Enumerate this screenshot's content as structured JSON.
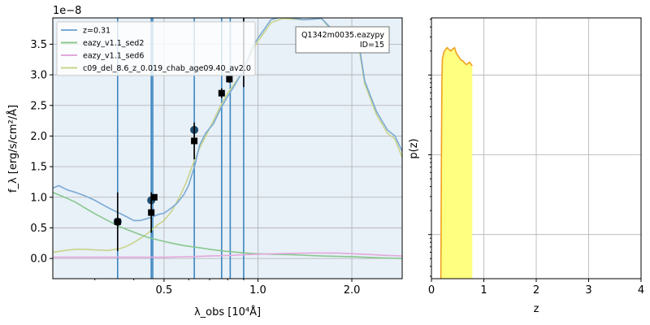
{
  "chart_data": [
    {
      "type": "line",
      "xlabel": "λ_obs [10⁴Å]",
      "ylabel": "f_λ [erg/s/cm²/Å]",
      "offset_text": "1e−8",
      "xscale": "log",
      "xlim": [
        0.22,
        2.9
      ],
      "ylim": [
        -0.33,
        3.93
      ],
      "x_ticks": [
        0.5,
        1.0,
        2.0
      ],
      "x_tick_labels": [
        "0.5",
        "1.0",
        "2.0"
      ],
      "y_ticks": [
        0.0,
        0.5,
        1.0,
        1.5,
        2.0,
        2.5,
        3.0,
        3.5
      ],
      "y_tick_labels": [
        "0.0",
        "0.5",
        "1.0",
        "1.5",
        "2.0",
        "2.5",
        "3.0",
        "3.5"
      ],
      "background": "#e8f0f8",
      "grid": true,
      "legend_placement": "top-left",
      "annotation": [
        "Q1342m0035.eazypy",
        "ID=15"
      ],
      "annotation_placement": "top-right",
      "series": [
        {
          "name": "z=0.31",
          "color": "#7aaad4",
          "points": [
            [
              0.22,
              1.15
            ],
            [
              0.23,
              1.19
            ],
            [
              0.245,
              1.12
            ],
            [
              0.26,
              1.08
            ],
            [
              0.28,
              1.02
            ],
            [
              0.3,
              0.95
            ],
            [
              0.32,
              0.87
            ],
            [
              0.34,
              0.8
            ],
            [
              0.36,
              0.74
            ],
            [
              0.38,
              0.68
            ],
            [
              0.4,
              0.62
            ],
            [
              0.42,
              0.62
            ],
            [
              0.44,
              0.65
            ],
            [
              0.46,
              0.68
            ],
            [
              0.48,
              0.72
            ],
            [
              0.5,
              0.74
            ],
            [
              0.52,
              0.8
            ],
            [
              0.55,
              0.9
            ],
            [
              0.58,
              1.05
            ],
            [
              0.6,
              1.2
            ],
            [
              0.63,
              1.55
            ],
            [
              0.65,
              1.85
            ],
            [
              0.68,
              2.05
            ],
            [
              0.72,
              2.2
            ],
            [
              0.76,
              2.45
            ],
            [
              0.8,
              2.65
            ],
            [
              0.84,
              2.82
            ],
            [
              0.88,
              3.0
            ],
            [
              0.92,
              3.2
            ],
            [
              0.96,
              3.45
            ],
            [
              1.0,
              3.6
            ],
            [
              1.05,
              3.75
            ],
            [
              1.1,
              3.9
            ],
            [
              1.2,
              3.95
            ],
            [
              1.4,
              3.9
            ],
            [
              1.6,
              3.92
            ],
            [
              1.8,
              3.65
            ],
            [
              2.0,
              3.6
            ],
            [
              2.1,
              3.55
            ],
            [
              2.2,
              2.9
            ],
            [
              2.4,
              2.4
            ],
            [
              2.6,
              2.1
            ],
            [
              2.75,
              2.0
            ],
            [
              2.9,
              1.75
            ]
          ]
        },
        {
          "name": "eazy_v1.1_sed2",
          "color": "#88c88e",
          "points": [
            [
              0.22,
              1.08
            ],
            [
              0.24,
              1.0
            ],
            [
              0.26,
              0.92
            ],
            [
              0.28,
              0.82
            ],
            [
              0.3,
              0.73
            ],
            [
              0.33,
              0.62
            ],
            [
              0.36,
              0.52
            ],
            [
              0.4,
              0.43
            ],
            [
              0.44,
              0.35
            ],
            [
              0.48,
              0.3
            ],
            [
              0.53,
              0.25
            ],
            [
              0.58,
              0.21
            ],
            [
              0.64,
              0.18
            ],
            [
              0.7,
              0.15
            ],
            [
              0.78,
              0.12
            ],
            [
              0.86,
              0.1
            ],
            [
              0.96,
              0.08
            ],
            [
              1.1,
              0.07
            ],
            [
              1.3,
              0.06
            ],
            [
              1.6,
              0.04
            ],
            [
              2.0,
              0.03
            ],
            [
              2.5,
              0.01
            ],
            [
              2.9,
              0.0
            ]
          ]
        },
        {
          "name": "eazy_v1.1_sed6",
          "color": "#e3a8dc",
          "points": [
            [
              0.22,
              0.02
            ],
            [
              0.3,
              0.02
            ],
            [
              0.4,
              0.02
            ],
            [
              0.5,
              0.02
            ],
            [
              0.6,
              0.03
            ],
            [
              0.7,
              0.04
            ],
            [
              0.8,
              0.05
            ],
            [
              0.9,
              0.06
            ],
            [
              1.0,
              0.07
            ],
            [
              1.2,
              0.08
            ],
            [
              1.5,
              0.09
            ],
            [
              1.8,
              0.09
            ],
            [
              2.2,
              0.07
            ],
            [
              2.6,
              0.05
            ],
            [
              2.9,
              0.04
            ]
          ]
        },
        {
          "name": "c09_del_8.6_z_0.019_chab_age09.40_av2.0",
          "color": "#c9d48a",
          "points": [
            [
              0.22,
              0.1
            ],
            [
              0.24,
              0.13
            ],
            [
              0.26,
              0.15
            ],
            [
              0.28,
              0.15
            ],
            [
              0.3,
              0.14
            ],
            [
              0.33,
              0.13
            ],
            [
              0.36,
              0.16
            ],
            [
              0.38,
              0.2
            ],
            [
              0.4,
              0.26
            ],
            [
              0.42,
              0.33
            ],
            [
              0.44,
              0.4
            ],
            [
              0.46,
              0.48
            ],
            [
              0.48,
              0.56
            ],
            [
              0.5,
              0.62
            ],
            [
              0.53,
              0.78
            ],
            [
              0.56,
              1.0
            ],
            [
              0.59,
              1.25
            ],
            [
              0.62,
              1.55
            ],
            [
              0.65,
              1.8
            ],
            [
              0.68,
              2.0
            ],
            [
              0.72,
              2.25
            ],
            [
              0.76,
              2.5
            ],
            [
              0.8,
              2.7
            ],
            [
              0.84,
              2.85
            ],
            [
              0.88,
              3.0
            ],
            [
              0.92,
              3.2
            ],
            [
              0.96,
              3.4
            ],
            [
              1.0,
              3.55
            ],
            [
              1.05,
              3.7
            ],
            [
              1.1,
              3.85
            ],
            [
              1.2,
              3.92
            ],
            [
              1.4,
              3.9
            ],
            [
              1.6,
              3.92
            ],
            [
              1.8,
              3.6
            ],
            [
              2.0,
              3.55
            ],
            [
              2.1,
              3.5
            ],
            [
              2.2,
              2.85
            ],
            [
              2.4,
              2.35
            ],
            [
              2.6,
              2.05
            ],
            [
              2.75,
              1.95
            ],
            [
              2.9,
              1.65
            ]
          ]
        }
      ],
      "filter_lines": {
        "color": "#3a86c0",
        "x": [
          0.355,
          0.455,
          0.46,
          0.625,
          0.765,
          0.815,
          0.9
        ]
      },
      "model_points": {
        "color": "#1f4e6e",
        "points": [
          [
            0.355,
            0.6
          ],
          [
            0.455,
            0.95
          ],
          [
            0.625,
            2.1
          ]
        ]
      },
      "observed_points": {
        "color": "#000000",
        "points": [
          [
            0.355,
            0.6,
            0.48
          ],
          [
            0.455,
            0.75,
            0.33
          ],
          [
            0.465,
            1.0,
            0.05
          ],
          [
            0.625,
            1.92,
            0.3
          ],
          [
            0.765,
            2.7,
            0.08
          ],
          [
            0.81,
            2.93,
            0.06
          ]
        ]
      },
      "upper_segment": {
        "x": 0.9,
        "y_from": 2.8,
        "y_to": 3.93
      }
    },
    {
      "type": "area",
      "xlabel": "z",
      "ylabel": "p(z)",
      "xlim": [
        0,
        4
      ],
      "x_ticks": [
        0,
        1,
        2,
        3,
        4
      ],
      "x_tick_labels": [
        "0",
        "1",
        "2",
        "3",
        "4"
      ],
      "yscale": "log",
      "ylim": [
        0.0028,
        5.2
      ],
      "y_ticks": [
        0.01,
        0.1,
        1
      ],
      "grid": true,
      "line_color": "#f0a020",
      "fill_color": "#ffff80",
      "points": [
        [
          0.18,
          0.0028
        ],
        [
          0.19,
          0.1
        ],
        [
          0.2,
          0.9
        ],
        [
          0.21,
          1.6
        ],
        [
          0.24,
          1.95
        ],
        [
          0.27,
          2.1
        ],
        [
          0.3,
          2.2
        ],
        [
          0.33,
          2.1
        ],
        [
          0.37,
          2.0
        ],
        [
          0.4,
          2.1
        ],
        [
          0.44,
          2.2
        ],
        [
          0.48,
          1.85
        ],
        [
          0.52,
          1.7
        ],
        [
          0.56,
          1.55
        ],
        [
          0.6,
          1.5
        ],
        [
          0.64,
          1.4
        ],
        [
          0.67,
          1.35
        ],
        [
          0.7,
          1.4
        ],
        [
          0.73,
          1.45
        ],
        [
          0.76,
          1.35
        ],
        [
          0.78,
          1.3
        ]
      ],
      "fill_range": [
        0.18,
        0.78
      ]
    }
  ]
}
